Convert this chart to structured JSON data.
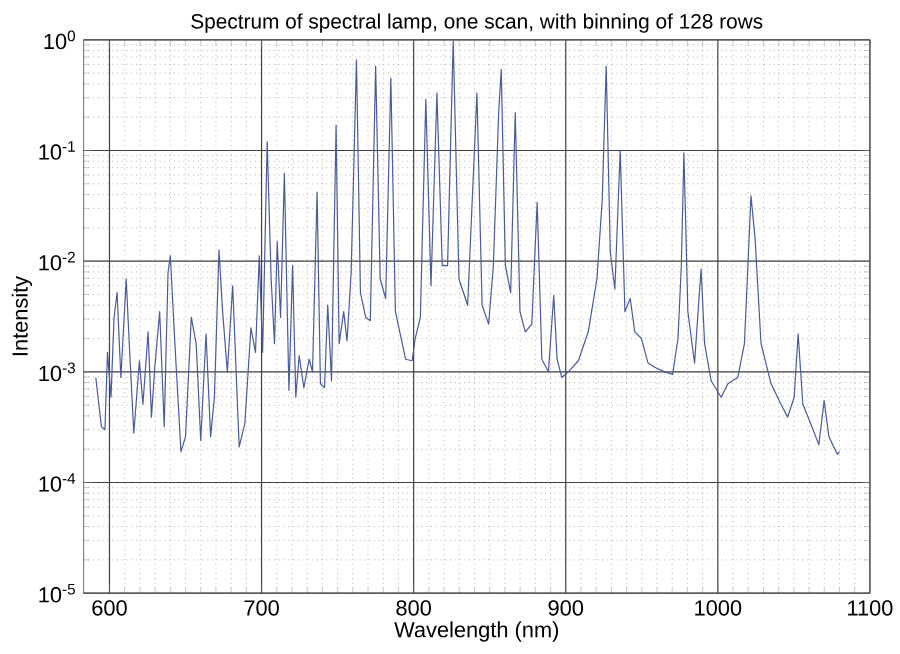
{
  "chart_data": {
    "type": "line",
    "title": "Spectrum of spectral lamp, one scan, with binning of 128 rows",
    "xlabel": "Wavelength (nm)",
    "ylabel": "Intensity",
    "log": "y",
    "grid": true,
    "color": "#4a5a9a",
    "xlim": [
      583,
      1100
    ],
    "xticks": [
      600,
      700,
      800,
      900,
      1000,
      1100
    ],
    "ylim": [
      1e-05,
      1
    ],
    "yticks": [
      {
        "value": 1e-05,
        "label": "10$^{-5}$"
      },
      {
        "value": 0.0001,
        "label": "10$^{-4}$"
      },
      {
        "value": 0.001,
        "label": "10$^{-3}$"
      },
      {
        "value": 0.01,
        "label": "10$^{-2}$"
      },
      {
        "value": 0.1,
        "label": "10$^{-1}$"
      },
      {
        "value": 1,
        "label": "10$^{0}$"
      }
    ],
    "x": [
      591,
      594.7,
      597,
      598.7,
      601,
      603,
      605,
      607.5,
      611,
      613,
      616,
      619.7,
      622,
      625.4,
      627.6,
      629.8,
      633,
      636,
      638.5,
      640,
      643,
      647,
      650,
      653.8,
      657,
      660,
      663.5,
      666.5,
      669,
      672,
      674.4,
      677.5,
      681,
      685.3,
      689,
      693,
      696,
      698.5,
      700.7,
      703.7,
      706.3,
      708.5,
      710.3,
      712.5,
      715,
      718,
      720.4,
      722.5,
      724.7,
      727.8,
      731.3,
      733.5,
      736.5,
      738.7,
      741.4,
      743.5,
      746,
      749,
      751,
      754,
      756.2,
      758.9,
      762.4,
      765,
      768.5,
      771.5,
      775,
      778,
      781.6,
      785,
      788,
      794.7,
      799,
      801,
      804.4,
      808,
      811.4,
      815.3,
      818.8,
      822.3,
      826,
      829.8,
      835.5,
      841.6,
      845,
      849.3,
      852.4,
      855.9,
      857.6,
      860.3,
      863.8,
      866.8,
      869.9,
      873.4,
      877.7,
      881.2,
      884.3,
      888.6,
      892.1,
      894.3,
      897.4,
      901.7,
      908.3,
      914.8,
      920.5,
      924,
      926.6,
      929.3,
      932.3,
      935.8,
      938.9,
      942.4,
      945.4,
      949.8,
      954.1,
      958.5,
      965,
      970.3,
      973.8,
      976,
      977.7,
      980.3,
      984.7,
      987.3,
      989,
      991.3,
      995.6,
      1002.2,
      1006.6,
      1013.1,
      1017.5,
      1021.8,
      1024.5,
      1028.4,
      1035,
      1041.5,
      1045.9,
      1050.2,
      1052.8,
      1055.9,
      1061.1,
      1066.4,
      1069.9,
      1073,
      1075.5,
      1078.6,
      1080
    ],
    "values": [
      0.00089,
      0.00032,
      0.0003,
      0.0015,
      0.00059,
      0.0031,
      0.0052,
      0.00089,
      0.0069,
      0.0018,
      0.00028,
      0.00126,
      0.00051,
      0.0023,
      0.00039,
      0.0011,
      0.0035,
      0.00032,
      0.0079,
      0.0112,
      0.0018,
      0.00019,
      0.00026,
      0.0031,
      0.0018,
      0.00024,
      0.0022,
      0.00026,
      0.00059,
      0.0126,
      0.0035,
      0.001,
      0.006,
      0.00021,
      0.00034,
      0.0025,
      0.0015,
      0.0112,
      0.0015,
      0.12,
      0.0069,
      0.0018,
      0.015,
      0.0031,
      0.062,
      0.00068,
      0.0091,
      0.00059,
      0.0014,
      0.00072,
      0.0013,
      0.001,
      0.042,
      0.00078,
      0.00072,
      0.004,
      0.00083,
      0.17,
      0.0018,
      0.0035,
      0.0019,
      0.0079,
      0.66,
      0.0052,
      0.0031,
      0.0029,
      0.58,
      0.0069,
      0.0046,
      0.45,
      0.0035,
      0.0013,
      0.00126,
      0.002,
      0.0031,
      0.29,
      0.006,
      0.33,
      0.0091,
      0.0091,
      0.98,
      0.0069,
      0.004,
      0.33,
      0.004,
      0.0027,
      0.0091,
      0.22,
      0.54,
      0.0091,
      0.0052,
      0.22,
      0.0035,
      0.0023,
      0.0027,
      0.034,
      0.0013,
      0.001,
      0.0049,
      0.0013,
      0.00089,
      0.001,
      0.00126,
      0.0023,
      0.0069,
      0.036,
      0.58,
      0.012,
      0.0056,
      0.1,
      0.0035,
      0.0046,
      0.0023,
      0.002,
      0.0012,
      0.0011,
      0.001,
      0.00095,
      0.002,
      0.0091,
      0.095,
      0.0035,
      0.0012,
      0.004,
      0.0085,
      0.0018,
      0.00083,
      0.00059,
      0.00078,
      0.00089,
      0.0018,
      0.039,
      0.016,
      0.0018,
      0.00078,
      0.00051,
      0.00039,
      0.00059,
      0.0022,
      0.00051,
      0.00034,
      0.00022,
      0.00055,
      0.00026,
      0.00022,
      0.00018,
      0.00019
    ]
  }
}
